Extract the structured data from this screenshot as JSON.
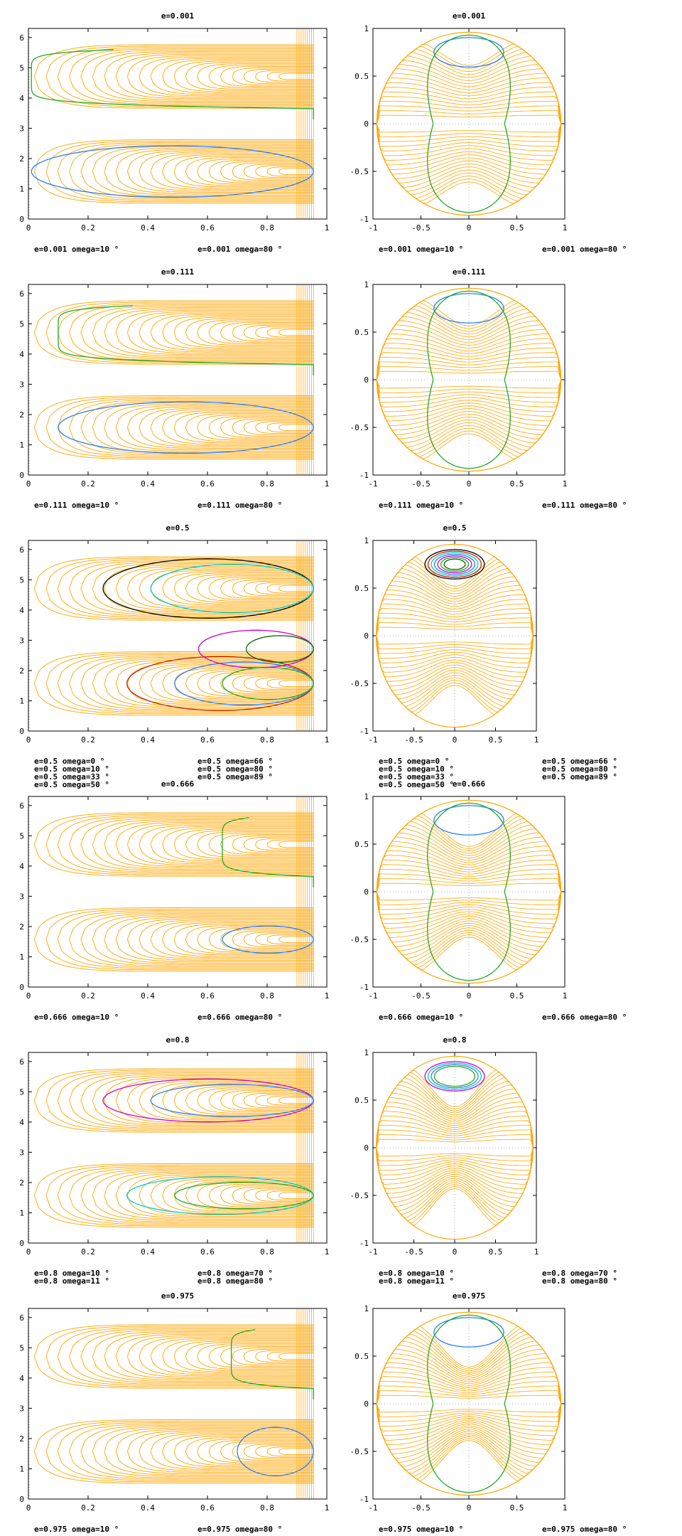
{
  "chart_data": [
    {
      "type": "line",
      "title": "e=0.001",
      "xlim": [
        0,
        1
      ],
      "ylim": [
        0,
        6.3
      ],
      "xticks": [
        "0",
        "0.2",
        "0.4",
        "0.6",
        "0.8",
        "1"
      ],
      "yticks": [
        "0",
        "1",
        "2",
        "3",
        "4",
        "5",
        "6"
      ],
      "legend": [
        "e=0.001  omega=10 °",
        "e=0.001  omega=80 °"
      ],
      "legend_columns": 2,
      "series": [
        {
          "name": "e=0.001  omega=10 °",
          "color": "#2a7fff"
        },
        {
          "name": "e=0.001  omega=80 °",
          "color": "#22aa22"
        }
      ]
    },
    {
      "type": "line",
      "title": "e=0.001",
      "xlim": [
        -1,
        1
      ],
      "ylim": [
        -1,
        1
      ],
      "xticks": [
        "-1",
        "-0.5",
        "0",
        "0.5",
        "1"
      ],
      "yticks": [
        "-1",
        "-0.5",
        "0",
        "0.5",
        "1"
      ],
      "legend": [
        "e=0.001  omega=10 °",
        "e=0.001  omega=80 °"
      ],
      "legend_columns": 2,
      "series": [
        {
          "name": "e=0.001  omega=10 °",
          "color": "#2a7fff"
        },
        {
          "name": "e=0.001  omega=80 °",
          "color": "#22aa22"
        }
      ]
    },
    {
      "type": "line",
      "title": "e=0.111",
      "xlim": [
        0,
        1
      ],
      "ylim": [
        0,
        6.3
      ],
      "xticks": [
        "0",
        "0.2",
        "0.4",
        "0.6",
        "0.8",
        "1"
      ],
      "yticks": [
        "0",
        "1",
        "2",
        "3",
        "4",
        "5",
        "6"
      ],
      "legend": [
        "e=0.111  omega=10 °",
        "e=0.111  omega=80 °"
      ],
      "legend_columns": 2,
      "series": [
        {
          "name": "e=0.111  omega=10 °",
          "color": "#2a7fff"
        },
        {
          "name": "e=0.111  omega=80 °",
          "color": "#22aa22"
        }
      ]
    },
    {
      "type": "line",
      "title": "e=0.111",
      "xlim": [
        -1,
        1
      ],
      "ylim": [
        -1,
        1
      ],
      "xticks": [
        "-1",
        "-0.5",
        "0",
        "0.5",
        "1"
      ],
      "yticks": [
        "-1",
        "-0.5",
        "0",
        "0.5",
        "1"
      ],
      "legend": [
        "e=0.111  omega=10 °",
        "e=0.111  omega=80 °"
      ],
      "legend_columns": 2,
      "series": [
        {
          "name": "e=0.111  omega=10 °",
          "color": "#2a7fff"
        },
        {
          "name": "e=0.111  omega=80 °",
          "color": "#22aa22"
        }
      ]
    },
    {
      "type": "line",
      "title": "e=0.5",
      "xlim": [
        0,
        1
      ],
      "ylim": [
        0,
        6.3
      ],
      "xticks": [
        "0",
        "0.2",
        "0.4",
        "0.6",
        "0.8",
        "1"
      ],
      "yticks": [
        "0",
        "1",
        "2",
        "3",
        "4",
        "5",
        "6"
      ],
      "legend": [
        "e=0.5  omega=0 °",
        "e=0.5  omega=10 °",
        "e=0.5  omega=33 °",
        "e=0.5  omega=50 °",
        "e=0.5  omega=66 °",
        "e=0.5  omega=80 °",
        "e=0.5  omega=89 °"
      ],
      "legend_columns": 2,
      "series": [
        {
          "name": "e=0.5  omega=0 °",
          "color": "#000000"
        },
        {
          "name": "e=0.5  omega=10 °",
          "color": "#cc2200"
        },
        {
          "name": "e=0.5  omega=33 °",
          "color": "#00cccc"
        },
        {
          "name": "e=0.5  omega=50 °",
          "color": "#2a7fff"
        },
        {
          "name": "e=0.5  omega=66 °",
          "color": "#cc00cc"
        },
        {
          "name": "e=0.5  omega=80 °",
          "color": "#22aa22"
        },
        {
          "name": "e=0.5  omega=89 °",
          "color": "#006600"
        }
      ]
    },
    {
      "type": "line",
      "title": "e=0.5",
      "xlim": [
        -1,
        1
      ],
      "ylim": [
        -1,
        1
      ],
      "xticks": [
        "-1",
        "-0.5",
        "0",
        "0.5",
        "1"
      ],
      "yticks": [
        "-1",
        "-0.5",
        "0",
        "0.5",
        "1"
      ],
      "legend": [
        "e=0.5  omega=0 °",
        "e=0.5  omega=10 °",
        "e=0.5  omega=33 °",
        "e=0.5  omega=50 °",
        "e=0.5  omega=66 °",
        "e=0.5  omega=80 °",
        "e=0.5  omega=89 °"
      ],
      "legend_columns": 2,
      "series": [
        {
          "name": "e=0.5  omega=0 °",
          "color": "#000000"
        },
        {
          "name": "e=0.5  omega=10 °",
          "color": "#cc2200"
        },
        {
          "name": "e=0.5  omega=33 °",
          "color": "#00cccc"
        },
        {
          "name": "e=0.5  omega=50 °",
          "color": "#2a7fff"
        },
        {
          "name": "e=0.5  omega=66 °",
          "color": "#cc00cc"
        },
        {
          "name": "e=0.5  omega=80 °",
          "color": "#22aa22"
        },
        {
          "name": "e=0.5  omega=89 °",
          "color": "#006600"
        }
      ]
    },
    {
      "type": "line",
      "title": "e=0.666",
      "xlim": [
        0,
        1
      ],
      "ylim": [
        0,
        6.3
      ],
      "xticks": [
        "0",
        "0.2",
        "0.4",
        "0.6",
        "0.8",
        "1"
      ],
      "yticks": [
        "0",
        "1",
        "2",
        "3",
        "4",
        "5",
        "6"
      ],
      "legend": [
        "e=0.666  omega=10 °",
        "e=0.666  omega=80 °"
      ],
      "legend_columns": 2,
      "series": [
        {
          "name": "e=0.666  omega=10 °",
          "color": "#2a7fff"
        },
        {
          "name": "e=0.666  omega=80 °",
          "color": "#22aa22"
        }
      ]
    },
    {
      "type": "line",
      "title": "e=0.666",
      "xlim": [
        -1,
        1
      ],
      "ylim": [
        -1,
        1
      ],
      "xticks": [
        "-1",
        "-0.5",
        "0",
        "0.5",
        "1"
      ],
      "yticks": [
        "-1",
        "-0.5",
        "0",
        "0.5",
        "1"
      ],
      "legend": [
        "e=0.666  omega=10 °",
        "e=0.666  omega=80 °"
      ],
      "legend_columns": 2,
      "series": [
        {
          "name": "e=0.666  omega=10 °",
          "color": "#2a7fff"
        },
        {
          "name": "e=0.666  omega=80 °",
          "color": "#22aa22"
        }
      ]
    },
    {
      "type": "line",
      "title": "e=0.8",
      "xlim": [
        0,
        1
      ],
      "ylim": [
        0,
        6.3
      ],
      "xticks": [
        "0",
        "0.2",
        "0.4",
        "0.6",
        "0.8",
        "1"
      ],
      "yticks": [
        "0",
        "1",
        "2",
        "3",
        "4",
        "5",
        "6"
      ],
      "legend": [
        "e=0.8  omega=10 °",
        "e=0.8  omega=11 °",
        "e=0.8  omega=70 °",
        "e=0.8  omega=80 °"
      ],
      "legend_columns": 2,
      "series": [
        {
          "name": "e=0.8  omega=10 °",
          "color": "#cc00cc"
        },
        {
          "name": "e=0.8  omega=11 °",
          "color": "#00cccc"
        },
        {
          "name": "e=0.8  omega=70 °",
          "color": "#2a7fff"
        },
        {
          "name": "e=0.8  omega=80 °",
          "color": "#22aa22"
        }
      ]
    },
    {
      "type": "line",
      "title": "e=0.8",
      "xlim": [
        -1,
        1
      ],
      "ylim": [
        -1,
        1
      ],
      "xticks": [
        "-1",
        "-0.5",
        "0",
        "0.5",
        "1"
      ],
      "yticks": [
        "-1",
        "-0.5",
        "0",
        "0.5",
        "1"
      ],
      "legend": [
        "e=0.8  omega=10 °",
        "e=0.8  omega=11 °",
        "e=0.8  omega=70 °",
        "e=0.8  omega=80 °"
      ],
      "legend_columns": 2,
      "series": [
        {
          "name": "e=0.8  omega=10 °",
          "color": "#cc00cc"
        },
        {
          "name": "e=0.8  omega=11 °",
          "color": "#00cccc"
        },
        {
          "name": "e=0.8  omega=70 °",
          "color": "#2a7fff"
        },
        {
          "name": "e=0.8  omega=80 °",
          "color": "#22aa22"
        }
      ]
    },
    {
      "type": "line",
      "title": "e=0.975",
      "xlim": [
        0,
        1
      ],
      "ylim": [
        0,
        6.3
      ],
      "xticks": [
        "0",
        "0.2",
        "0.4",
        "0.6",
        "0.8",
        "1"
      ],
      "yticks": [
        "0",
        "1",
        "2",
        "3",
        "4",
        "5",
        "6"
      ],
      "legend": [
        "e=0.975  omega=10 °",
        "e=0.975  omega=80 °"
      ],
      "legend_columns": 2,
      "series": [
        {
          "name": "e=0.975  omega=10 °",
          "color": "#2a7fff"
        },
        {
          "name": "e=0.975  omega=80 °",
          "color": "#22aa22"
        }
      ]
    },
    {
      "type": "line",
      "title": "e=0.975",
      "xlim": [
        -1,
        1
      ],
      "ylim": [
        -1,
        1
      ],
      "xticks": [
        "-1",
        "-0.5",
        "0",
        "0.5",
        "1"
      ],
      "yticks": [
        "-1",
        "-0.5",
        "0",
        "0.5",
        "1"
      ],
      "legend": [
        "e=0.975  omega=10 °",
        "e=0.975  omega=80 °"
      ],
      "legend_columns": 2,
      "series": [
        {
          "name": "e=0.975  omega=10 °",
          "color": "#2a7fff"
        },
        {
          "name": "e=0.975  omega=80 °",
          "color": "#22aa22"
        }
      ]
    }
  ],
  "colors": {
    "contours": "#ffa500",
    "axes": "#000000",
    "grid": "#999999"
  }
}
